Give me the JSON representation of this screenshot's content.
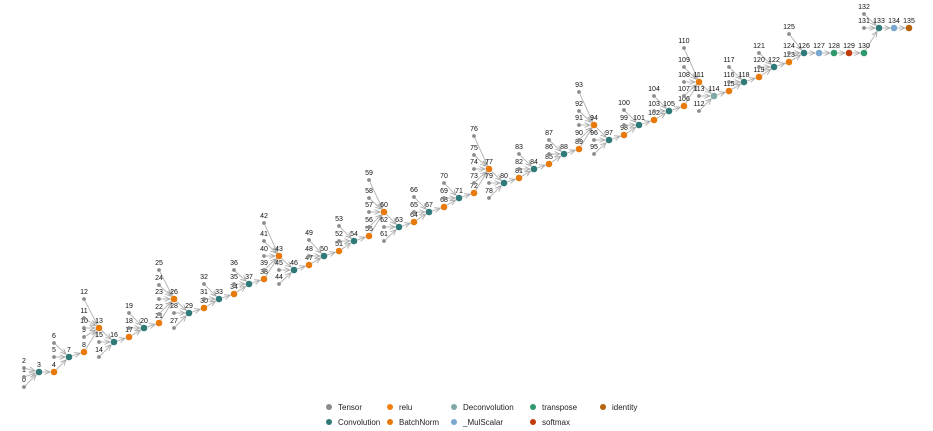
{
  "colors": {
    "Tensor": "#8c8c8c",
    "Convolution": "#2f7a79",
    "relu": "#f07f0e",
    "BatchNorm": "#e8790b",
    "Deconvolution": "#7fa8a8",
    "_MulScalar": "#79a7d0",
    "transpose": "#2e9a6c",
    "softmax": "#c23b0b",
    "identity": "#b7620c"
  },
  "legend": [
    {
      "label": "Tensor",
      "type": "Tensor"
    },
    {
      "label": "relu",
      "type": "relu"
    },
    {
      "label": "Deconvolution",
      "type": "Deconvolution"
    },
    {
      "label": "transpose",
      "type": "transpose"
    },
    {
      "label": "identity",
      "type": "identity"
    },
    {
      "label": "Convolution",
      "type": "Convolution"
    },
    {
      "label": "BatchNorm",
      "type": "BatchNorm"
    },
    {
      "label": "_MulScalar",
      "type": "_MulScalar"
    },
    {
      "label": "softmax",
      "type": "softmax"
    }
  ],
  "nodes": [
    {
      "id": 0,
      "type": "Tensor"
    },
    {
      "id": 1,
      "type": "Tensor"
    },
    {
      "id": 2,
      "type": "Tensor"
    },
    {
      "id": 3,
      "type": "Convolution"
    },
    {
      "id": 4,
      "type": "BatchNorm"
    },
    {
      "id": 5,
      "type": "Tensor"
    },
    {
      "id": 6,
      "type": "Tensor"
    },
    {
      "id": 7,
      "type": "Convolution"
    },
    {
      "id": 8,
      "type": "BatchNorm"
    },
    {
      "id": 9,
      "type": "Tensor"
    },
    {
      "id": 10,
      "type": "Tensor"
    },
    {
      "id": 11,
      "type": "Tensor"
    },
    {
      "id": 12,
      "type": "Tensor"
    },
    {
      "id": 13,
      "type": "BatchNorm"
    },
    {
      "id": 14,
      "type": "Tensor"
    },
    {
      "id": 15,
      "type": "Tensor"
    },
    {
      "id": 16,
      "type": "Convolution"
    },
    {
      "id": 17,
      "type": "BatchNorm"
    },
    {
      "id": 18,
      "type": "Tensor"
    },
    {
      "id": 19,
      "type": "Tensor"
    },
    {
      "id": 20,
      "type": "Convolution"
    },
    {
      "id": 21,
      "type": "BatchNorm"
    },
    {
      "id": 22,
      "type": "Tensor"
    },
    {
      "id": 23,
      "type": "Tensor"
    },
    {
      "id": 24,
      "type": "Tensor"
    },
    {
      "id": 25,
      "type": "Tensor"
    },
    {
      "id": 26,
      "type": "BatchNorm"
    },
    {
      "id": 27,
      "type": "Tensor"
    },
    {
      "id": 28,
      "type": "Tensor"
    },
    {
      "id": 29,
      "type": "Convolution"
    },
    {
      "id": 30,
      "type": "BatchNorm"
    },
    {
      "id": 31,
      "type": "Tensor"
    },
    {
      "id": 32,
      "type": "Tensor"
    },
    {
      "id": 33,
      "type": "Convolution"
    },
    {
      "id": 34,
      "type": "BatchNorm"
    },
    {
      "id": 35,
      "type": "Tensor"
    },
    {
      "id": 36,
      "type": "Tensor"
    },
    {
      "id": 37,
      "type": "Convolution"
    },
    {
      "id": 38,
      "type": "BatchNorm"
    },
    {
      "id": 39,
      "type": "Tensor"
    },
    {
      "id": 40,
      "type": "Tensor"
    },
    {
      "id": 41,
      "type": "Tensor"
    },
    {
      "id": 42,
      "type": "Tensor"
    },
    {
      "id": 43,
      "type": "BatchNorm"
    },
    {
      "id": 44,
      "type": "Tensor"
    },
    {
      "id": 45,
      "type": "Tensor"
    },
    {
      "id": 46,
      "type": "Convolution"
    },
    {
      "id": 47,
      "type": "BatchNorm"
    },
    {
      "id": 48,
      "type": "Tensor"
    },
    {
      "id": 49,
      "type": "Tensor"
    },
    {
      "id": 50,
      "type": "Convolution"
    },
    {
      "id": 51,
      "type": "BatchNorm"
    },
    {
      "id": 52,
      "type": "Tensor"
    },
    {
      "id": 53,
      "type": "Tensor"
    },
    {
      "id": 54,
      "type": "Convolution"
    },
    {
      "id": 55,
      "type": "BatchNorm"
    },
    {
      "id": 56,
      "type": "Tensor"
    },
    {
      "id": 57,
      "type": "Tensor"
    },
    {
      "id": 58,
      "type": "Tensor"
    },
    {
      "id": 59,
      "type": "Tensor"
    },
    {
      "id": 60,
      "type": "BatchNorm"
    },
    {
      "id": 61,
      "type": "Tensor"
    },
    {
      "id": 62,
      "type": "Tensor"
    },
    {
      "id": 63,
      "type": "Convolution"
    },
    {
      "id": 64,
      "type": "BatchNorm"
    },
    {
      "id": 65,
      "type": "Tensor"
    },
    {
      "id": 66,
      "type": "Tensor"
    },
    {
      "id": 67,
      "type": "Convolution"
    },
    {
      "id": 68,
      "type": "BatchNorm"
    },
    {
      "id": 69,
      "type": "Tensor"
    },
    {
      "id": 70,
      "type": "Tensor"
    },
    {
      "id": 71,
      "type": "Convolution"
    },
    {
      "id": 72,
      "type": "BatchNorm"
    },
    {
      "id": 73,
      "type": "Tensor"
    },
    {
      "id": 74,
      "type": "Tensor"
    },
    {
      "id": 75,
      "type": "Tensor"
    },
    {
      "id": 76,
      "type": "Tensor"
    },
    {
      "id": 77,
      "type": "BatchNorm"
    },
    {
      "id": 78,
      "type": "Tensor"
    },
    {
      "id": 79,
      "type": "Tensor"
    },
    {
      "id": 80,
      "type": "Convolution"
    },
    {
      "id": 81,
      "type": "BatchNorm"
    },
    {
      "id": 82,
      "type": "Tensor"
    },
    {
      "id": 83,
      "type": "Tensor"
    },
    {
      "id": 84,
      "type": "Convolution"
    },
    {
      "id": 85,
      "type": "BatchNorm"
    },
    {
      "id": 86,
      "type": "Tensor"
    },
    {
      "id": 87,
      "type": "Tensor"
    },
    {
      "id": 88,
      "type": "Convolution"
    },
    {
      "id": 89,
      "type": "BatchNorm"
    },
    {
      "id": 90,
      "type": "Tensor"
    },
    {
      "id": 91,
      "type": "Tensor"
    },
    {
      "id": 92,
      "type": "Tensor"
    },
    {
      "id": 93,
      "type": "Tensor"
    },
    {
      "id": 94,
      "type": "BatchNorm"
    },
    {
      "id": 95,
      "type": "Tensor"
    },
    {
      "id": 96,
      "type": "Tensor"
    },
    {
      "id": 97,
      "type": "Convolution"
    },
    {
      "id": 98,
      "type": "BatchNorm"
    },
    {
      "id": 99,
      "type": "Tensor"
    },
    {
      "id": 100,
      "type": "Tensor"
    },
    {
      "id": 101,
      "type": "Convolution"
    },
    {
      "id": 102,
      "type": "BatchNorm"
    },
    {
      "id": 103,
      "type": "Tensor"
    },
    {
      "id": 104,
      "type": "Tensor"
    },
    {
      "id": 105,
      "type": "Convolution"
    },
    {
      "id": 106,
      "type": "BatchNorm"
    },
    {
      "id": 107,
      "type": "Tensor"
    },
    {
      "id": 108,
      "type": "Tensor"
    },
    {
      "id": 109,
      "type": "Tensor"
    },
    {
      "id": 110,
      "type": "Tensor"
    },
    {
      "id": 111,
      "type": "BatchNorm"
    },
    {
      "id": 112,
      "type": "Tensor"
    },
    {
      "id": 113,
      "type": "Tensor"
    },
    {
      "id": 114,
      "type": "Deconvolution"
    },
    {
      "id": 115,
      "type": "BatchNorm"
    },
    {
      "id": 116,
      "type": "Tensor"
    },
    {
      "id": 117,
      "type": "Tensor"
    },
    {
      "id": 118,
      "type": "Convolution"
    },
    {
      "id": 119,
      "type": "BatchNorm"
    },
    {
      "id": 120,
      "type": "Tensor"
    },
    {
      "id": 121,
      "type": "Tensor"
    },
    {
      "id": 122,
      "type": "Convolution"
    },
    {
      "id": 123,
      "type": "BatchNorm"
    },
    {
      "id": 124,
      "type": "Tensor"
    },
    {
      "id": 125,
      "type": "Tensor"
    },
    {
      "id": 126,
      "type": "Convolution"
    },
    {
      "id": 127,
      "type": "_MulScalar"
    },
    {
      "id": 128,
      "type": "transpose"
    },
    {
      "id": 129,
      "type": "softmax"
    },
    {
      "id": 130,
      "type": "transpose"
    },
    {
      "id": 131,
      "type": "Tensor"
    },
    {
      "id": 132,
      "type": "Tensor"
    },
    {
      "id": 133,
      "type": "Convolution"
    },
    {
      "id": 134,
      "type": "_MulScalar"
    },
    {
      "id": 135,
      "type": "identity"
    }
  ]
}
